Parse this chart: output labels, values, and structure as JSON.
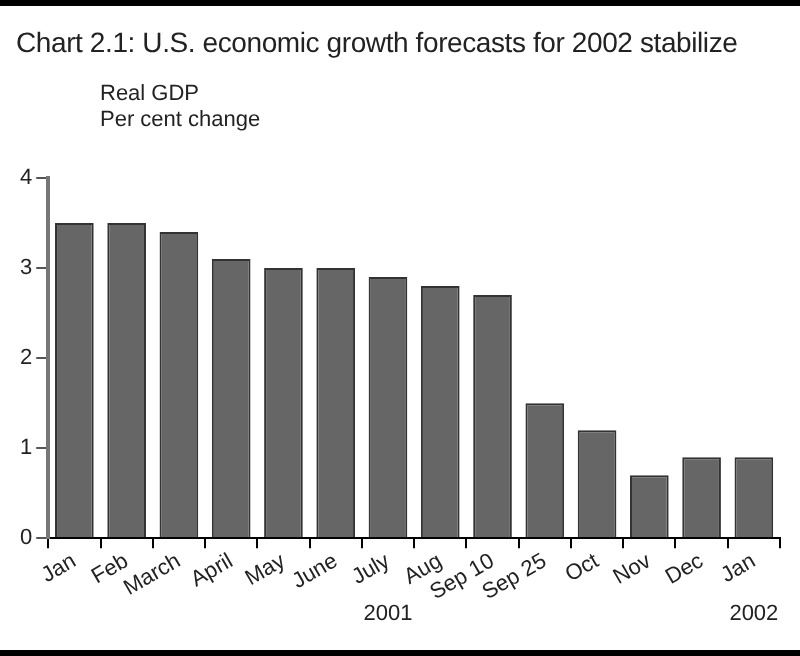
{
  "chart_data": {
    "type": "bar",
    "title": "Chart 2.1: U.S. economic growth forecasts for 2002 stabilize",
    "ylabel": "Real GDP\nPer cent change",
    "categories": [
      "Jan",
      "Feb",
      "March",
      "April",
      "May",
      "June",
      "July",
      "Aug",
      "Sep 10",
      "Sep 25",
      "Oct",
      "Nov",
      "Dec",
      "Jan"
    ],
    "values": [
      3.5,
      3.5,
      3.4,
      3.1,
      3.0,
      3.0,
      2.9,
      2.8,
      2.7,
      1.5,
      1.2,
      0.7,
      0.9,
      0.9
    ],
    "color": "#666666",
    "ylim": [
      0,
      4
    ],
    "yticks": [
      0,
      1,
      2,
      3,
      4
    ],
    "grid": false,
    "legend": false,
    "annotations": [
      "2001",
      "2002"
    ]
  }
}
